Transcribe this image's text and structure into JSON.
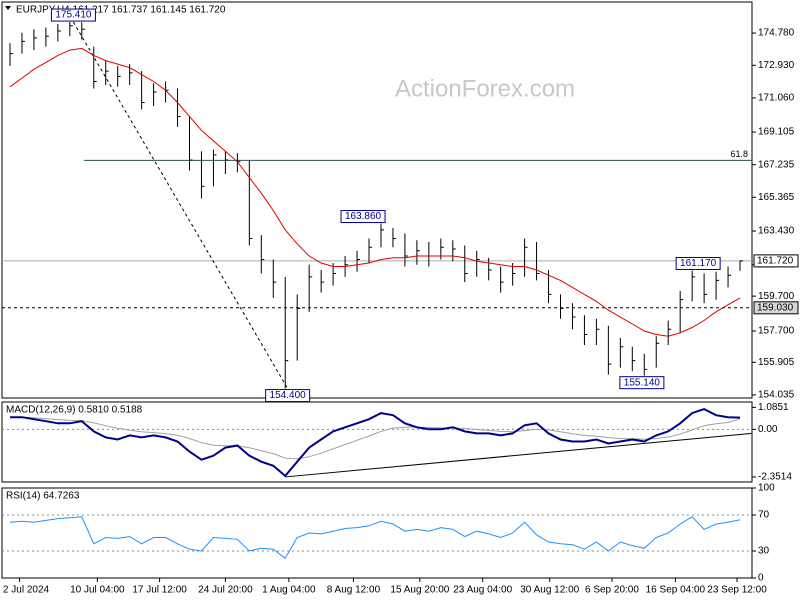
{
  "chart_data": [
    {
      "type": "ohlc",
      "title": "EURJPY,H4  161.217 161.737 161.145 161.720",
      "watermark": "ActionForex.com",
      "xlim": [
        -0.5,
        61.5
      ],
      "ylim": [
        153.86,
        176.56
      ],
      "yticks": [
        154.035,
        155.905,
        {
          "value": 157.7,
          "label": "157.700"
        },
        {
          "value": 159.7,
          "label": "159.700"
        },
        161.495,
        {
          "value": 163.43,
          "label": "163.430"
        },
        165.365,
        167.235,
        169.105,
        {
          "value": 171.06,
          "label": "171.060"
        },
        {
          "value": 172.93,
          "label": "172.930"
        },
        {
          "value": 174.78,
          "label": "174.780"
        }
      ],
      "color": "#000000",
      "close": [
        173.6,
        174.3,
        174.5,
        174.6,
        174.9,
        175.2,
        175.0,
        172.0,
        172.6,
        172.3,
        172.5,
        170.8,
        171.4,
        171.5,
        170.0,
        167.5,
        166.0,
        167.8,
        167.5,
        167.4,
        163.0,
        161.8,
        160.5,
        156.0,
        159.0,
        160.8,
        160.5,
        161.0,
        161.5,
        161.8,
        162.5,
        163.5,
        163.0,
        162.0,
        162.3,
        162.0,
        162.5,
        162.4,
        161.0,
        161.8,
        161.2,
        160.5,
        161.0,
        162.5,
        161.0,
        159.8,
        159.0,
        158.5,
        157.5,
        157.8,
        155.8,
        156.8,
        156.0,
        155.5,
        157.0,
        157.8,
        159.5,
        160.8,
        159.8,
        160.6,
        160.9,
        161.72
      ],
      "high": [
        174.2,
        174.8,
        175.0,
        175.1,
        175.3,
        175.41,
        175.4,
        174.0,
        173.2,
        172.9,
        173.0,
        172.6,
        171.9,
        172.0,
        171.6,
        170.0,
        168.0,
        168.1,
        168.0,
        167.9,
        167.5,
        163.2,
        161.8,
        160.8,
        159.8,
        161.5,
        161.2,
        161.6,
        162.0,
        162.3,
        163.0,
        163.86,
        163.6,
        163.3,
        162.9,
        162.8,
        163.0,
        162.9,
        162.6,
        162.3,
        161.9,
        161.4,
        161.6,
        163.0,
        162.8,
        161.2,
        159.8,
        159.3,
        158.6,
        158.4,
        158.0,
        157.3,
        156.8,
        156.4,
        157.4,
        158.3,
        160.0,
        161.17,
        161.0,
        161.1,
        161.4,
        161.74
      ],
      "low": [
        172.9,
        173.6,
        173.8,
        174.0,
        174.3,
        174.6,
        174.4,
        171.6,
        171.8,
        171.7,
        171.8,
        170.4,
        170.6,
        170.8,
        169.4,
        166.9,
        165.3,
        166.0,
        166.7,
        166.8,
        162.6,
        161.0,
        159.6,
        154.4,
        156.0,
        158.8,
        159.9,
        160.3,
        160.8,
        161.1,
        161.6,
        162.5,
        162.5,
        161.4,
        161.5,
        161.4,
        161.8,
        161.7,
        160.5,
        160.8,
        160.6,
        159.9,
        160.3,
        160.8,
        160.6,
        159.3,
        158.4,
        157.8,
        156.9,
        156.9,
        155.2,
        155.6,
        155.4,
        155.14,
        155.6,
        156.9,
        157.6,
        159.4,
        159.3,
        159.5,
        160.2,
        161.15
      ],
      "ma": {
        "color": "#e00000",
        "values": [
          171.7,
          172.2,
          172.7,
          173.1,
          173.5,
          173.8,
          173.9,
          173.5,
          173.2,
          173.0,
          172.8,
          172.4,
          172.0,
          171.5,
          170.8,
          170.0,
          169.2,
          168.6,
          168.0,
          167.4,
          166.5,
          165.6,
          164.6,
          163.5,
          162.7,
          162.0,
          161.6,
          161.4,
          161.4,
          161.5,
          161.6,
          161.8,
          161.9,
          161.9,
          162.0,
          162.0,
          162.0,
          162.0,
          161.9,
          161.7,
          161.6,
          161.5,
          161.4,
          161.4,
          161.2,
          160.9,
          160.6,
          160.2,
          159.8,
          159.4,
          158.9,
          158.5,
          158.1,
          157.7,
          157.5,
          157.4,
          157.6,
          157.9,
          158.3,
          158.8,
          159.2,
          159.6
        ]
      },
      "hlines": [
        {
          "value": 161.72,
          "label": "161.720",
          "style": "solid"
        },
        {
          "value": 159.03,
          "label": "159.030",
          "style": "dashed"
        }
      ],
      "fib": {
        "value": 167.48,
        "label": "61.8"
      },
      "labels": [
        {
          "value": 175.41,
          "label": "175.410"
        },
        {
          "value": 163.86,
          "label": "163.860"
        },
        {
          "value": 154.4,
          "label": "154.400"
        },
        {
          "value": 155.14,
          "label": "155.140"
        },
        {
          "value": 161.17,
          "label": "161.170"
        }
      ]
    },
    {
      "type": "macd",
      "title": "MACD(12,26,9) 0.5810 0.5188",
      "xlim": [
        -0.5,
        61.5
      ],
      "ylim": [
        -2.6,
        1.35
      ],
      "yticks": [
        1.0851,
        {
          "value": 0,
          "label": "0.00"
        },
        -2.3514
      ],
      "macd": {
        "color": "#00008b",
        "values": [
          0.6,
          0.6,
          0.5,
          0.4,
          0.3,
          0.3,
          0.4,
          -0.1,
          -0.4,
          -0.5,
          -0.3,
          -0.4,
          -0.3,
          -0.4,
          -0.6,
          -1.1,
          -1.5,
          -1.3,
          -0.9,
          -0.8,
          -1.3,
          -1.6,
          -1.8,
          -2.3,
          -1.6,
          -0.9,
          -0.5,
          -0.1,
          0.1,
          0.3,
          0.5,
          0.8,
          0.7,
          0.3,
          0.1,
          0.0,
          0.0,
          0.1,
          -0.1,
          -0.2,
          -0.2,
          -0.3,
          -0.2,
          0.2,
          0.3,
          -0.2,
          -0.5,
          -0.6,
          -0.6,
          -0.5,
          -0.7,
          -0.6,
          -0.5,
          -0.6,
          -0.3,
          -0.1,
          0.3,
          0.8,
          1.0,
          0.7,
          0.6,
          0.581
        ]
      },
      "signal": {
        "color": "#a0a0a0",
        "values": [
          0.6,
          0.6,
          0.57,
          0.53,
          0.48,
          0.44,
          0.43,
          0.32,
          0.18,
          0.05,
          -0.04,
          -0.12,
          -0.16,
          -0.21,
          -0.29,
          -0.45,
          -0.66,
          -0.79,
          -0.81,
          -0.81,
          -0.91,
          -1.05,
          -1.2,
          -1.42,
          -1.46,
          -1.35,
          -1.18,
          -0.96,
          -0.75,
          -0.54,
          -0.33,
          -0.1,
          0.06,
          0.11,
          0.11,
          0.09,
          0.07,
          0.08,
          0.04,
          -0.01,
          -0.05,
          -0.1,
          -0.12,
          -0.06,
          0.01,
          -0.03,
          -0.12,
          -0.22,
          -0.3,
          -0.34,
          -0.41,
          -0.45,
          -0.46,
          -0.49,
          -0.45,
          -0.38,
          -0.24,
          -0.03,
          0.18,
          0.28,
          0.34,
          0.5188
        ]
      }
    },
    {
      "type": "line",
      "title": "RSI(14) 64.7263",
      "xlim": [
        -0.5,
        61.5
      ],
      "ylim": [
        0,
        100
      ],
      "yticks": [
        100,
        70,
        30,
        0
      ],
      "color": "#1e90ff",
      "values": [
        62,
        63,
        62,
        64,
        66,
        67,
        68,
        38,
        45,
        44,
        46,
        38,
        45,
        45,
        38,
        32,
        30,
        45,
        44,
        43,
        30,
        33,
        32,
        22,
        45,
        50,
        49,
        52,
        55,
        56,
        58,
        63,
        60,
        52,
        54,
        52,
        56,
        54,
        46,
        52,
        49,
        45,
        50,
        62,
        48,
        40,
        38,
        37,
        32,
        40,
        30,
        40,
        36,
        33,
        45,
        50,
        60,
        68,
        54,
        60,
        62,
        64.7263
      ],
      "xticks": [
        {
          "value": 0.8,
          "label": "2 Jul 2024"
        },
        {
          "value": 7.3,
          "label": "10 Jul 04:00"
        },
        {
          "value": 12.5,
          "label": "17 Jul 12:00"
        },
        {
          "value": 18,
          "label": "24 Jul 20:00"
        },
        {
          "value": 23.3,
          "label": "1 Aug 04:00"
        },
        {
          "value": 28.7,
          "label": "8 Aug 12:00"
        },
        {
          "value": 34.25,
          "label": "15 Aug 20:00"
        },
        {
          "value": 39.5,
          "label": "23 Aug 04:00"
        },
        {
          "value": 45.1,
          "label": "30 Aug 12:00"
        },
        {
          "value": 50.3,
          "label": "6 Sep 20:00"
        },
        {
          "value": 55.6,
          "label": "16 Sep 04:00"
        },
        {
          "value": 60.75,
          "label": "23 Sep 12:00"
        }
      ]
    }
  ]
}
